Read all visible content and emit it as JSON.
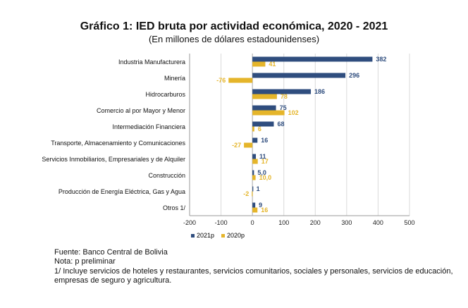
{
  "header": {
    "title": "Gráfico 1: IED bruta por actividad económica, 2020 - 2021",
    "subtitle": "(En millones de dólares estadounidenses)"
  },
  "colors": {
    "series_2021": "#2f4d7e",
    "series_2020": "#e5b52a",
    "grid": "#d9d9d9",
    "axis": "#9a9a9a"
  },
  "chart_data": {
    "type": "bar",
    "orientation": "horizontal",
    "categories": [
      "Industria Manufacturera",
      "Minería",
      "Hidrocarburos",
      "Comercio al por Mayor y Menor",
      "Intermediación Financiera",
      "Transporte, Almacenamiento y Comunicaciones",
      "Servicios Inmobiliarios, Empresariales y de Alquiler",
      "Construcción",
      "Producción de Energía Eléctrica, Gas y Agua",
      "Otros 1/"
    ],
    "series": [
      {
        "name": "2021p",
        "values": [
          382,
          296,
          186,
          75,
          68,
          16,
          11,
          5.0,
          1,
          9
        ],
        "labels": [
          "382",
          "296",
          "186",
          "75",
          "68",
          "16",
          "11",
          "5,0",
          "1",
          "9"
        ]
      },
      {
        "name": "2020p",
        "values": [
          41,
          -76,
          78,
          102,
          6,
          -27,
          17,
          10.0,
          -2,
          16
        ],
        "labels": [
          "41",
          "-76",
          "78",
          "102",
          "6",
          "-27",
          "17",
          "10,0",
          "-2",
          "16"
        ]
      }
    ],
    "xlim": [
      -200,
      500
    ],
    "xticks": [
      -200,
      -100,
      0,
      100,
      200,
      300,
      400,
      500
    ],
    "grid": true,
    "legend": "bottom"
  },
  "footnotes": {
    "source": "Fuente: Banco Central de Bolivia",
    "note": "Nota: p preliminar",
    "note1_line1": "1/ Incluye servicios de hoteles y restaurantes, servicios comunitarios, sociales y personales, servicios de educación,",
    "note1_line2": "empresas de seguro y agricultura."
  }
}
